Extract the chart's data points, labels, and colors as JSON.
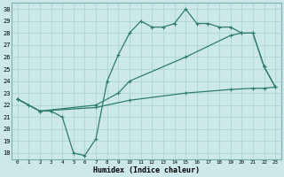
{
  "title": "",
  "xlabel": "Humidex (Indice chaleur)",
  "ylabel": "",
  "bg_color": "#cce8e8",
  "line_color": "#2e7d6e",
  "grid_color": "#b0d8d8",
  "ylim": [
    17.5,
    30.5
  ],
  "xlim": [
    -0.5,
    23.5
  ],
  "yticks": [
    18,
    19,
    20,
    21,
    22,
    23,
    24,
    25,
    26,
    27,
    28,
    29,
    30
  ],
  "xticks": [
    0,
    1,
    2,
    3,
    4,
    5,
    6,
    7,
    8,
    9,
    10,
    11,
    12,
    13,
    14,
    15,
    16,
    17,
    18,
    19,
    20,
    21,
    22,
    23
  ],
  "line1_x": [
    0,
    1,
    2,
    3,
    4,
    5,
    6,
    7,
    8,
    9,
    10,
    11,
    12,
    13,
    14,
    15,
    16,
    17,
    18,
    19,
    20,
    21,
    22,
    23
  ],
  "line1_y": [
    22.5,
    22.0,
    21.5,
    21.5,
    21.0,
    18.0,
    17.8,
    19.2,
    24.0,
    26.2,
    28.0,
    29.0,
    28.5,
    28.5,
    28.8,
    30.0,
    28.8,
    28.8,
    28.5,
    28.5,
    28.0,
    28.0,
    25.2,
    23.5
  ],
  "line2_x": [
    0,
    2,
    7,
    9,
    10,
    15,
    19,
    20,
    21,
    22,
    23
  ],
  "line2_y": [
    22.5,
    21.5,
    22.0,
    23.0,
    24.0,
    26.0,
    27.8,
    28.0,
    28.0,
    25.2,
    23.5
  ],
  "line3_x": [
    0,
    2,
    7,
    10,
    15,
    19,
    21,
    22,
    23
  ],
  "line3_y": [
    22.5,
    21.5,
    21.8,
    22.4,
    23.0,
    23.3,
    23.4,
    23.4,
    23.5
  ]
}
